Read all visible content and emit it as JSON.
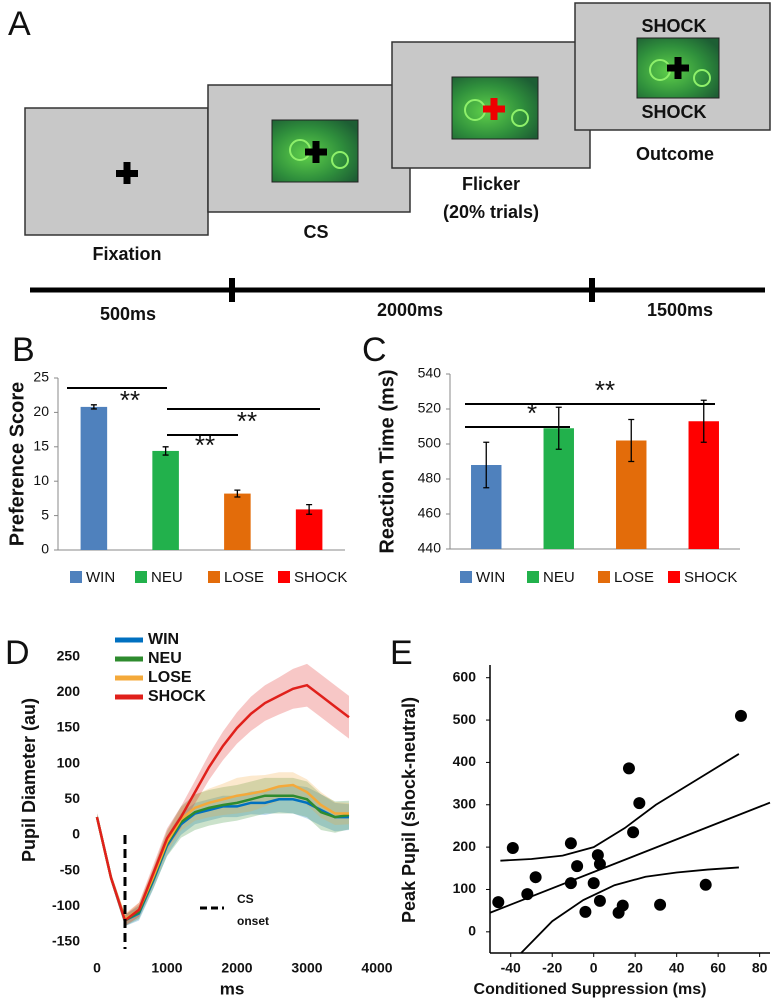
{
  "panel_a": {
    "label": "A",
    "screens": [
      {
        "caption": "Fixation"
      },
      {
        "caption": "CS"
      },
      {
        "caption": [
          "Flicker",
          "(20% trials)"
        ]
      },
      {
        "caption": "Outcome",
        "texts": [
          "SHOCK",
          "SHOCK"
        ]
      }
    ],
    "timeline": [
      "500ms",
      "2000ms",
      "1500ms"
    ]
  },
  "chart_data": [
    {
      "label": "B",
      "type": "bar",
      "ylabel": "Preference Score",
      "categories": [
        "WIN",
        "NEU",
        "LOSE",
        "SHOCK"
      ],
      "values": [
        20.8,
        14.4,
        8.2,
        5.9
      ],
      "errors": [
        0.3,
        0.6,
        0.5,
        0.7
      ],
      "colors": [
        "#4f81bd",
        "#22b14c",
        "#e36c0a",
        "#ff0000"
      ],
      "ylim": [
        0,
        25
      ],
      "yticks": [
        0,
        5,
        10,
        15,
        20,
        25
      ],
      "annotations": [
        "**",
        "**",
        "**"
      ]
    },
    {
      "label": "C",
      "type": "bar",
      "ylabel": "Reaction Time (ms)",
      "categories": [
        "WIN",
        "NEU",
        "LOSE",
        "SHOCK"
      ],
      "values": [
        488,
        509,
        502,
        513
      ],
      "errors": [
        13,
        12,
        12,
        12
      ],
      "colors": [
        "#4f81bd",
        "#22b14c",
        "#e36c0a",
        "#ff0000"
      ],
      "ylim": [
        440,
        540
      ],
      "yticks": [
        440,
        460,
        480,
        500,
        520,
        540
      ],
      "annotations": [
        "*",
        "**"
      ]
    },
    {
      "label": "D",
      "type": "line",
      "xlabel": "ms",
      "ylabel": "Pupil Diameter (au)",
      "x": [
        0,
        200,
        400,
        600,
        800,
        1000,
        1200,
        1400,
        1600,
        1800,
        2000,
        2200,
        2400,
        2600,
        2800,
        3000,
        3200,
        3400,
        3600
      ],
      "series": [
        {
          "name": "WIN",
          "color": "#0070c0",
          "values": [
            25,
            -60,
            -120,
            -110,
            -65,
            -15,
            15,
            30,
            35,
            40,
            40,
            45,
            45,
            50,
            50,
            45,
            35,
            25,
            25
          ],
          "errors": [
            5,
            6,
            8,
            10,
            12,
            14,
            15,
            15,
            15,
            15,
            15,
            16,
            17,
            18,
            20,
            22,
            22,
            20,
            18
          ]
        },
        {
          "name": "NEU",
          "color": "#2e8b2e",
          "values": [
            25,
            -60,
            -120,
            -108,
            -62,
            -12,
            18,
            32,
            38,
            42,
            45,
            50,
            55,
            55,
            55,
            50,
            32,
            25,
            28
          ],
          "errors": [
            5,
            6,
            8,
            10,
            14,
            18,
            22,
            25,
            25,
            25,
            25,
            25,
            25,
            25,
            25,
            25,
            25,
            22,
            20
          ]
        },
        {
          "name": "LOSE",
          "color": "#f4a93a",
          "values": [
            25,
            -60,
            -118,
            -105,
            -60,
            -10,
            22,
            38,
            45,
            50,
            55,
            58,
            62,
            68,
            70,
            60,
            42,
            30,
            30
          ],
          "errors": [
            5,
            6,
            8,
            10,
            12,
            14,
            16,
            18,
            20,
            22,
            25,
            25,
            22,
            20,
            18,
            18,
            18,
            16,
            15
          ]
        },
        {
          "name": "SHOCK",
          "color": "#e0201b",
          "values": [
            25,
            -60,
            -120,
            -105,
            -55,
            -5,
            25,
            60,
            95,
            125,
            150,
            170,
            185,
            195,
            205,
            210,
            195,
            180,
            165
          ],
          "errors": [
            5,
            6,
            8,
            10,
            12,
            14,
            15,
            16,
            18,
            20,
            22,
            24,
            25,
            26,
            28,
            30,
            30,
            30,
            30
          ]
        }
      ],
      "vline": 400,
      "vline_label": [
        "CS",
        "onset"
      ],
      "xlim": [
        -100,
        3800
      ],
      "xticks": [
        0,
        1000,
        2000,
        3000,
        4000
      ],
      "ylim": [
        -160,
        265
      ],
      "yticks": [
        -150,
        -100,
        -50,
        0,
        50,
        100,
        150,
        200,
        250
      ]
    },
    {
      "label": "E",
      "type": "scatter",
      "xlabel": "Conditioned Suppression (ms)",
      "ylabel": "Peak Pupil (shock-neutral)",
      "x": [
        -46,
        -39,
        -32,
        -28,
        -11,
        -11,
        -8,
        -4,
        0,
        2,
        3,
        3,
        12,
        14,
        17,
        19,
        22,
        32,
        54,
        71
      ],
      "y": [
        70,
        198,
        89,
        129,
        209,
        115,
        155,
        47,
        115,
        181,
        160,
        73,
        45,
        62,
        386,
        235,
        304,
        64,
        111,
        510
      ],
      "color": "#000000",
      "fit": {
        "x": [
          -50,
          85
        ],
        "y": [
          45,
          305
        ]
      },
      "ci_upper": {
        "x": [
          -45,
          -30,
          -15,
          0,
          15,
          30,
          50,
          70
        ],
        "y": [
          168,
          172,
          180,
          200,
          245,
          300,
          360,
          420
        ]
      },
      "ci_lower": {
        "x": [
          -35,
          -20,
          -5,
          10,
          25,
          40,
          55,
          70
        ],
        "y": [
          -50,
          25,
          75,
          110,
          130,
          140,
          147,
          152
        ]
      },
      "xlim": [
        -50,
        85
      ],
      "xticks": [
        -40,
        -20,
        0,
        20,
        40,
        60,
        80
      ],
      "ylim": [
        -50,
        630
      ],
      "yticks": [
        0,
        100,
        200,
        300,
        400,
        500,
        600
      ]
    }
  ]
}
